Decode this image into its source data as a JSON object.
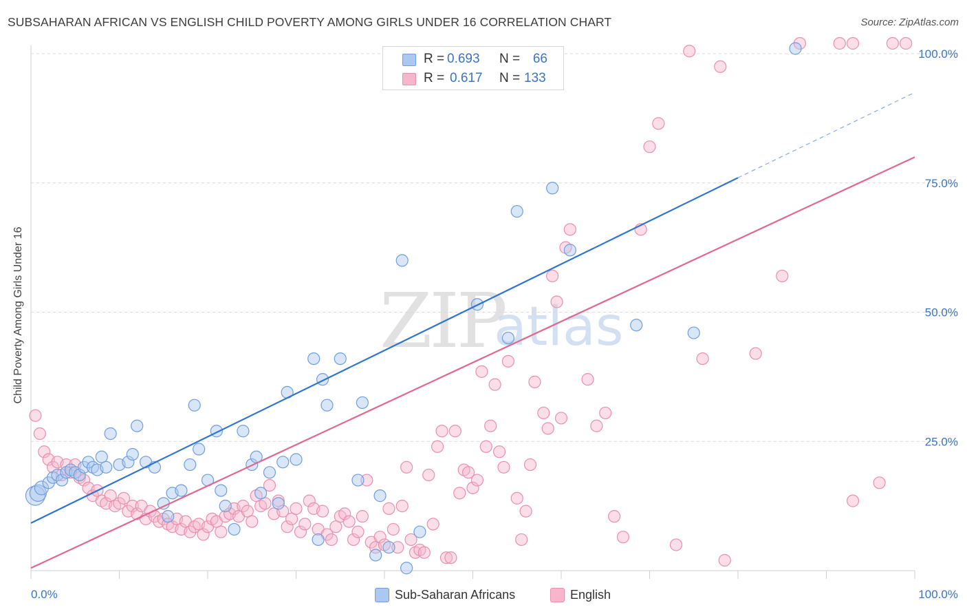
{
  "title": "SUBSAHARAN AFRICAN VS ENGLISH CHILD POVERTY AMONG GIRLS UNDER 16 CORRELATION CHART",
  "source": "Source: ZipAtlas.com",
  "watermark": {
    "zip": "ZIP",
    "atlas": "atlas"
  },
  "stats": {
    "row1": {
      "r_label": "R =",
      "r_value": "0.693",
      "n_label": "N =",
      "n_value": "66"
    },
    "row2": {
      "r_label": "R =",
      "r_value": "0.617",
      "n_label": "N =",
      "n_value": "133"
    }
  },
  "legend": {
    "series1": "Sub-Saharan Africans",
    "series2": "English"
  },
  "colors": {
    "blue_fill": "#aac8f0",
    "blue_stroke": "#6f9ee0",
    "blue_line": "#2f74d0",
    "pink_fill": "#f7b6cb",
    "pink_stroke": "#ea8fac",
    "pink_line": "#e0688f",
    "value_text": "#3a74c4"
  },
  "chart_data": {
    "type": "scatter",
    "title": "SUBSAHARAN AFRICAN VS ENGLISH CHILD POVERTY AMONG GIRLS UNDER 16 CORRELATION CHART",
    "xlabel": "",
    "ylabel": "Child Poverty Among Girls Under 16",
    "xlim": [
      0,
      100
    ],
    "ylim": [
      0,
      100
    ],
    "x_tick_labels": [
      "0.0%",
      "100.0%"
    ],
    "y_tick_labels": [
      "25.0%",
      "50.0%",
      "75.0%",
      "100.0%"
    ],
    "y_ticks": [
      25,
      50,
      75,
      100
    ],
    "grid": true,
    "legend_position": "bottom-center",
    "series": [
      {
        "name": "Sub-Saharan Africans",
        "r": 0.693,
        "n": 66,
        "trendline": {
          "x": [
            0,
            80
          ],
          "y": [
            9.2,
            76.0
          ],
          "dashed_extension": {
            "x": [
              80,
              100
            ],
            "y": [
              76.0,
              92.5
            ]
          }
        },
        "points": [
          [
            0.5,
            14.5
          ],
          [
            0.8,
            15.0
          ],
          [
            1.2,
            16.0
          ],
          [
            2.0,
            17.0
          ],
          [
            2.5,
            18.0
          ],
          [
            3.0,
            18.5
          ],
          [
            3.5,
            17.5
          ],
          [
            4.0,
            19.0
          ],
          [
            4.5,
            19.5
          ],
          [
            5.0,
            19.0
          ],
          [
            5.5,
            18.5
          ],
          [
            6.0,
            20.0
          ],
          [
            6.5,
            21.0
          ],
          [
            7.0,
            20.0
          ],
          [
            7.5,
            19.5
          ],
          [
            8.0,
            22.0
          ],
          [
            8.5,
            20.0
          ],
          [
            9.0,
            26.5
          ],
          [
            10.0,
            20.5
          ],
          [
            11.0,
            21.0
          ],
          [
            11.5,
            22.5
          ],
          [
            12.0,
            28.0
          ],
          [
            13.0,
            21.0
          ],
          [
            14.0,
            20.0
          ],
          [
            15.0,
            13.0
          ],
          [
            15.5,
            10.5
          ],
          [
            16.0,
            15.0
          ],
          [
            17.0,
            15.5
          ],
          [
            18.0,
            20.5
          ],
          [
            18.5,
            32.0
          ],
          [
            19.0,
            23.5
          ],
          [
            20.0,
            17.5
          ],
          [
            21.0,
            27.0
          ],
          [
            21.5,
            15.5
          ],
          [
            22.0,
            12.5
          ],
          [
            23.0,
            8.0
          ],
          [
            24.0,
            27.0
          ],
          [
            25.0,
            20.5
          ],
          [
            25.5,
            22.0
          ],
          [
            26.0,
            15.0
          ],
          [
            27.0,
            19.0
          ],
          [
            28.0,
            13.0
          ],
          [
            28.5,
            21.0
          ],
          [
            29.0,
            34.5
          ],
          [
            30.0,
            21.5
          ],
          [
            32.0,
            41.0
          ],
          [
            32.5,
            6.0
          ],
          [
            33.0,
            37.0
          ],
          [
            33.5,
            32.0
          ],
          [
            35.0,
            41.0
          ],
          [
            37.0,
            17.5
          ],
          [
            37.5,
            32.5
          ],
          [
            39.0,
            3.0
          ],
          [
            39.5,
            14.5
          ],
          [
            40.5,
            4.5
          ],
          [
            42.0,
            60.0
          ],
          [
            42.5,
            0.5
          ],
          [
            44.0,
            7.5
          ],
          [
            50.5,
            51.5
          ],
          [
            54.0,
            45.0
          ],
          [
            55.0,
            69.5
          ],
          [
            59.0,
            74.0
          ],
          [
            61.0,
            62.0
          ],
          [
            68.5,
            47.5
          ],
          [
            75.0,
            46.0
          ],
          [
            86.5,
            101.0
          ]
        ]
      },
      {
        "name": "English",
        "r": 0.617,
        "n": 133,
        "trendline": {
          "x": [
            0,
            100
          ],
          "y": [
            0.5,
            80.0
          ]
        },
        "points": [
          [
            0.5,
            30.0
          ],
          [
            1.0,
            26.5
          ],
          [
            1.5,
            23.0
          ],
          [
            2.0,
            21.5
          ],
          [
            2.5,
            20.0
          ],
          [
            3.0,
            21.0
          ],
          [
            3.5,
            18.5
          ],
          [
            4.0,
            20.5
          ],
          [
            4.5,
            19.0
          ],
          [
            5.0,
            20.5
          ],
          [
            5.5,
            18.0
          ],
          [
            6.0,
            17.5
          ],
          [
            6.5,
            16.0
          ],
          [
            7.0,
            14.5
          ],
          [
            7.5,
            15.5
          ],
          [
            8.0,
            13.5
          ],
          [
            8.5,
            13.0
          ],
          [
            9.0,
            14.5
          ],
          [
            9.5,
            12.5
          ],
          [
            10.0,
            13.0
          ],
          [
            10.5,
            14.0
          ],
          [
            11.0,
            11.5
          ],
          [
            11.5,
            12.5
          ],
          [
            12.0,
            11.0
          ],
          [
            12.5,
            12.5
          ],
          [
            13.0,
            10.0
          ],
          [
            13.5,
            11.5
          ],
          [
            14.0,
            10.5
          ],
          [
            14.5,
            9.5
          ],
          [
            15.0,
            10.0
          ],
          [
            15.5,
            9.0
          ],
          [
            16.0,
            8.5
          ],
          [
            16.5,
            10.0
          ],
          [
            17.0,
            8.0
          ],
          [
            17.5,
            9.5
          ],
          [
            18.0,
            7.5
          ],
          [
            18.5,
            8.5
          ],
          [
            19.0,
            9.0
          ],
          [
            19.5,
            7.0
          ],
          [
            20.0,
            8.5
          ],
          [
            20.5,
            10.0
          ],
          [
            21.0,
            9.5
          ],
          [
            21.5,
            7.5
          ],
          [
            22.0,
            10.5
          ],
          [
            22.5,
            11.0
          ],
          [
            23.0,
            12.0
          ],
          [
            23.5,
            10.5
          ],
          [
            24.0,
            12.5
          ],
          [
            24.5,
            11.5
          ],
          [
            25.0,
            9.5
          ],
          [
            25.5,
            14.5
          ],
          [
            26.0,
            12.5
          ],
          [
            26.5,
            13.0
          ],
          [
            27.0,
            16.5
          ],
          [
            27.5,
            11.0
          ],
          [
            28.0,
            13.5
          ],
          [
            28.5,
            11.5
          ],
          [
            29.0,
            8.5
          ],
          [
            29.5,
            10.0
          ],
          [
            30.0,
            12.0
          ],
          [
            30.5,
            7.5
          ],
          [
            31.0,
            9.0
          ],
          [
            31.5,
            13.5
          ],
          [
            32.0,
            12.0
          ],
          [
            32.5,
            8.0
          ],
          [
            33.0,
            11.5
          ],
          [
            33.5,
            7.0
          ],
          [
            34.0,
            6.0
          ],
          [
            34.5,
            8.5
          ],
          [
            35.0,
            10.5
          ],
          [
            35.5,
            11.0
          ],
          [
            36.0,
            9.5
          ],
          [
            36.5,
            6.0
          ],
          [
            37.0,
            7.5
          ],
          [
            37.5,
            10.5
          ],
          [
            38.0,
            17.5
          ],
          [
            38.5,
            5.5
          ],
          [
            39.0,
            4.5
          ],
          [
            39.5,
            6.5
          ],
          [
            40.0,
            5.0
          ],
          [
            40.5,
            12.0
          ],
          [
            41.0,
            8.0
          ],
          [
            41.5,
            4.5
          ],
          [
            42.0,
            12.5
          ],
          [
            42.5,
            20.0
          ],
          [
            43.0,
            6.0
          ],
          [
            43.5,
            3.5
          ],
          [
            44.0,
            4.0
          ],
          [
            44.5,
            3.5
          ],
          [
            45.0,
            18.5
          ],
          [
            45.5,
            9.0
          ],
          [
            46.0,
            24.0
          ],
          [
            46.5,
            27.0
          ],
          [
            47.0,
            2.5
          ],
          [
            47.5,
            2.5
          ],
          [
            48.0,
            27.0
          ],
          [
            48.5,
            15.0
          ],
          [
            49.0,
            19.5
          ],
          [
            49.5,
            19.0
          ],
          [
            50.0,
            16.0
          ],
          [
            50.5,
            17.5
          ],
          [
            51.0,
            38.5
          ],
          [
            51.5,
            24.0
          ],
          [
            52.0,
            28.0
          ],
          [
            52.5,
            36.0
          ],
          [
            53.0,
            23.0
          ],
          [
            53.5,
            20.0
          ],
          [
            54.0,
            40.5
          ],
          [
            55.0,
            14.0
          ],
          [
            55.5,
            6.0
          ],
          [
            56.0,
            11.5
          ],
          [
            56.5,
            20.5
          ],
          [
            57.0,
            36.5
          ],
          [
            58.0,
            30.5
          ],
          [
            58.5,
            27.5
          ],
          [
            59.0,
            57.0
          ],
          [
            59.5,
            52.0
          ],
          [
            60.0,
            29.5
          ],
          [
            60.5,
            62.5
          ],
          [
            61.0,
            66.0
          ],
          [
            63.0,
            37.0
          ],
          [
            64.0,
            28.0
          ],
          [
            65.0,
            30.5
          ],
          [
            66.0,
            10.5
          ],
          [
            67.0,
            6.5
          ],
          [
            69.0,
            66.0
          ],
          [
            70.0,
            82.0
          ],
          [
            71.0,
            86.5
          ],
          [
            73.0,
            5.0
          ],
          [
            76.0,
            41.0
          ],
          [
            78.5,
            2.0
          ],
          [
            82.0,
            42.0
          ],
          [
            85.0,
            57.0
          ],
          [
            93.0,
            13.5
          ],
          [
            96.0,
            17.0
          ]
        ]
      }
    ],
    "top_edge_points_pink_x": [
      74.5,
      78.0,
      87.0,
      91.5,
      93.0,
      97.5,
      99.0
    ],
    "top_edge_points_pink_y": [
      100.5,
      97.5,
      102.0,
      102.0,
      102.0,
      102.0,
      102.0
    ]
  }
}
